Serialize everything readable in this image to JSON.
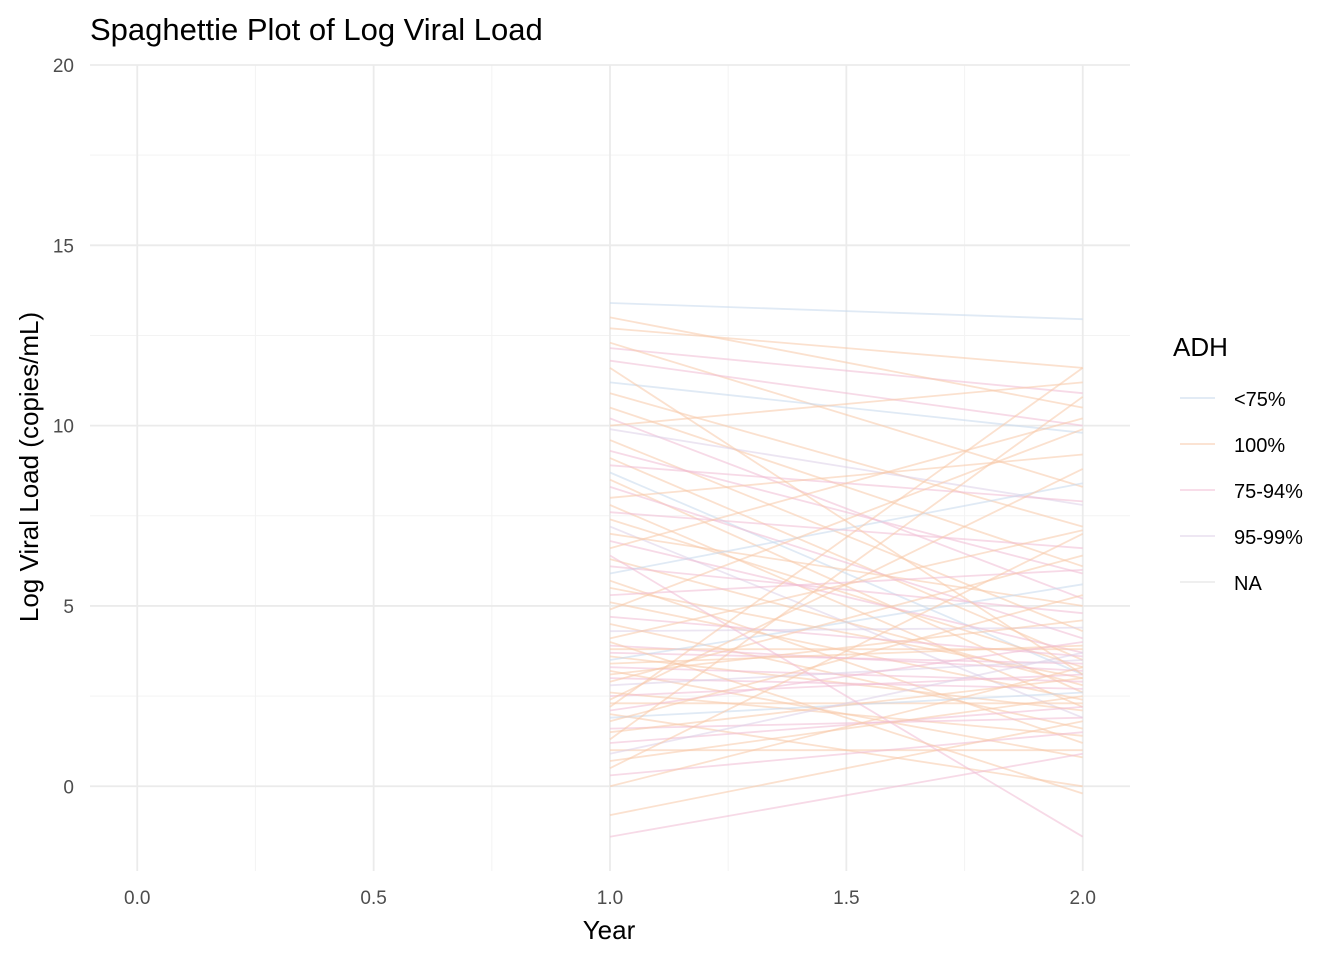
{
  "chart_data": {
    "type": "line",
    "title": "Spaghettie Plot of Log Viral Load",
    "xlabel": "Year",
    "ylabel": "Log Viral Load (copies/mL)",
    "xlim": [
      -0.1,
      2.1
    ],
    "ylim": [
      -2.35,
      20
    ],
    "x_ticks": [
      0.0,
      0.5,
      1.0,
      1.5,
      2.0
    ],
    "x_tick_labels": [
      "0.0",
      "0.5",
      "1.0",
      "1.5",
      "2.0"
    ],
    "y_ticks": [
      0,
      5,
      10,
      15,
      20
    ],
    "y_tick_labels": [
      "0",
      "5",
      "10",
      "15",
      "20"
    ],
    "grid": true,
    "legend": {
      "title": "ADH",
      "position": "right",
      "entries": [
        {
          "label": "<75%",
          "color": "#c6d8ec"
        },
        {
          "label": "100%",
          "color": "#f7c8a8"
        },
        {
          "label": "75-94%",
          "color": "#f1bcd4"
        },
        {
          "label": "95-99%",
          "color": "#ddd0e8"
        },
        {
          "label": "NA",
          "color": "#e0e0e0"
        }
      ]
    },
    "line_opacity": 0.3,
    "series": [
      {
        "group": "<75%",
        "x": [
          1,
          2
        ],
        "y": [
          13.4,
          12.95
        ]
      },
      {
        "group": "75-94%",
        "x": [
          1,
          2
        ],
        "y": [
          12.15,
          10.9
        ]
      },
      {
        "group": "100%",
        "x": [
          1,
          2
        ],
        "y": [
          13.0,
          10.5
        ]
      },
      {
        "group": "100%",
        "x": [
          1,
          2
        ],
        "y": [
          12.7,
          11.6
        ]
      },
      {
        "group": "100%",
        "x": [
          1,
          2
        ],
        "y": [
          12.3,
          8.3
        ]
      },
      {
        "group": "75-94%",
        "x": [
          1,
          2
        ],
        "y": [
          11.8,
          10.0
        ]
      },
      {
        "group": "<75%",
        "x": [
          1,
          2
        ],
        "y": [
          11.2,
          9.8
        ]
      },
      {
        "group": "100%",
        "x": [
          1,
          2
        ],
        "y": [
          10.9,
          7.2
        ]
      },
      {
        "group": "100%",
        "x": [
          1,
          2
        ],
        "y": [
          10.5,
          6.1
        ]
      },
      {
        "group": "75-94%",
        "x": [
          1,
          2
        ],
        "y": [
          10.2,
          5.2
        ]
      },
      {
        "group": "95-99%",
        "x": [
          1,
          2
        ],
        "y": [
          9.9,
          7.8
        ]
      },
      {
        "group": "100%",
        "x": [
          1,
          2
        ],
        "y": [
          9.6,
          4.3
        ]
      },
      {
        "group": "75-94%",
        "x": [
          1,
          2
        ],
        "y": [
          9.3,
          5.9
        ]
      },
      {
        "group": "100%",
        "x": [
          1,
          2
        ],
        "y": [
          9.1,
          3.5
        ]
      },
      {
        "group": "75-94%",
        "x": [
          1,
          2
        ],
        "y": [
          8.9,
          7.9
        ]
      },
      {
        "group": "<75%",
        "x": [
          1,
          2
        ],
        "y": [
          8.7,
          3.1
        ]
      },
      {
        "group": "100%",
        "x": [
          1,
          2
        ],
        "y": [
          8.5,
          2.6
        ]
      },
      {
        "group": "75-94%",
        "x": [
          1,
          2
        ],
        "y": [
          8.3,
          4.1
        ]
      },
      {
        "group": "100%",
        "x": [
          1,
          2
        ],
        "y": [
          8.0,
          9.2
        ]
      },
      {
        "group": "100%",
        "x": [
          1,
          2
        ],
        "y": [
          7.8,
          2.2
        ]
      },
      {
        "group": "75-94%",
        "x": [
          1,
          2
        ],
        "y": [
          7.6,
          6.6
        ]
      },
      {
        "group": "100%",
        "x": [
          1,
          2
        ],
        "y": [
          7.4,
          3.3
        ]
      },
      {
        "group": "95-99%",
        "x": [
          1,
          2
        ],
        "y": [
          7.2,
          1.9
        ]
      },
      {
        "group": "100%",
        "x": [
          1,
          2
        ],
        "y": [
          7.0,
          5.0
        ]
      },
      {
        "group": "75-94%",
        "x": [
          1,
          2
        ],
        "y": [
          6.8,
          3.7
        ]
      },
      {
        "group": "100%",
        "x": [
          1,
          2
        ],
        "y": [
          6.6,
          10.2
        ]
      },
      {
        "group": "100%",
        "x": [
          1,
          2
        ],
        "y": [
          6.3,
          2.8
        ]
      },
      {
        "group": "75-94%",
        "x": [
          1,
          2
        ],
        "y": [
          6.1,
          4.8
        ]
      },
      {
        "group": "<75%",
        "x": [
          1,
          2
        ],
        "y": [
          5.9,
          8.4
        ]
      },
      {
        "group": "100%",
        "x": [
          1,
          2
        ],
        "y": [
          5.7,
          1.2
        ]
      },
      {
        "group": "100%",
        "x": [
          1,
          2
        ],
        "y": [
          5.5,
          3.0
        ]
      },
      {
        "group": "75-94%",
        "x": [
          1,
          2
        ],
        "y": [
          5.3,
          6.0
        ]
      },
      {
        "group": "100%",
        "x": [
          1,
          2
        ],
        "y": [
          5.1,
          2.4
        ]
      },
      {
        "group": "100%",
        "x": [
          1,
          2
        ],
        "y": [
          4.9,
          9.9
        ]
      },
      {
        "group": "75-94%",
        "x": [
          1,
          2
        ],
        "y": [
          4.7,
          3.6
        ]
      },
      {
        "group": "100%",
        "x": [
          1,
          2
        ],
        "y": [
          4.5,
          1.6
        ]
      },
      {
        "group": "95-99%",
        "x": [
          1,
          2
        ],
        "y": [
          4.3,
          4.4
        ]
      },
      {
        "group": "100%",
        "x": [
          1,
          2
        ],
        "y": [
          4.1,
          7.1
        ]
      },
      {
        "group": "75-94%",
        "x": [
          1,
          2
        ],
        "y": [
          3.9,
          3.2
        ]
      },
      {
        "group": "100%",
        "x": [
          1,
          2
        ],
        "y": [
          3.8,
          3.8
        ]
      },
      {
        "group": "75-94%",
        "x": [
          1,
          2
        ],
        "y": [
          3.7,
          3.4
        ]
      },
      {
        "group": "100%",
        "x": [
          1,
          2
        ],
        "y": [
          3.6,
          2.1
        ]
      },
      {
        "group": "<75%",
        "x": [
          1,
          2
        ],
        "y": [
          3.5,
          5.6
        ]
      },
      {
        "group": "100%",
        "x": [
          1,
          2
        ],
        "y": [
          3.4,
          3.9
        ]
      },
      {
        "group": "75-94%",
        "x": [
          1,
          2
        ],
        "y": [
          3.3,
          2.9
        ]
      },
      {
        "group": "100%",
        "x": [
          1,
          2
        ],
        "y": [
          3.2,
          0.8
        ]
      },
      {
        "group": "100%",
        "x": [
          1,
          2
        ],
        "y": [
          3.1,
          4.6
        ]
      },
      {
        "group": "75-94%",
        "x": [
          1,
          2
        ],
        "y": [
          3.0,
          2.7
        ]
      },
      {
        "group": "100%",
        "x": [
          1,
          2
        ],
        "y": [
          2.9,
          6.4
        ]
      },
      {
        "group": "95-99%",
        "x": [
          1,
          2
        ],
        "y": [
          2.8,
          3.5
        ]
      },
      {
        "group": "100%",
        "x": [
          1,
          2
        ],
        "y": [
          2.6,
          1.4
        ]
      },
      {
        "group": "75-94%",
        "x": [
          1,
          2
        ],
        "y": [
          2.5,
          3.1
        ]
      },
      {
        "group": "100%",
        "x": [
          1,
          2
        ],
        "y": [
          2.4,
          8.8
        ]
      },
      {
        "group": "100%",
        "x": [
          1,
          2
        ],
        "y": [
          2.3,
          2.3
        ]
      },
      {
        "group": "75-94%",
        "x": [
          1,
          2
        ],
        "y": [
          2.1,
          4.0
        ]
      },
      {
        "group": "100%",
        "x": [
          1,
          2
        ],
        "y": [
          2.0,
          0.0
        ]
      },
      {
        "group": "<75%",
        "x": [
          1,
          2
        ],
        "y": [
          1.9,
          2.6
        ]
      },
      {
        "group": "100%",
        "x": [
          1,
          2
        ],
        "y": [
          1.8,
          5.3
        ]
      },
      {
        "group": "75-94%",
        "x": [
          1,
          2
        ],
        "y": [
          1.6,
          1.9
        ]
      },
      {
        "group": "100%",
        "x": [
          1,
          2
        ],
        "y": [
          1.5,
          3.0
        ]
      },
      {
        "group": "100%",
        "x": [
          1,
          2
        ],
        "y": [
          1.3,
          10.8
        ]
      },
      {
        "group": "75-94%",
        "x": [
          1,
          2
        ],
        "y": [
          1.2,
          2.2
        ]
      },
      {
        "group": "100%",
        "x": [
          1,
          2
        ],
        "y": [
          1.0,
          1.0
        ]
      },
      {
        "group": "95-99%",
        "x": [
          1,
          2
        ],
        "y": [
          0.9,
          3.7
        ]
      },
      {
        "group": "100%",
        "x": [
          1,
          2
        ],
        "y": [
          0.7,
          2.5
        ]
      },
      {
        "group": "100%",
        "x": [
          1,
          2
        ],
        "y": [
          0.5,
          7.0
        ]
      },
      {
        "group": "75-94%",
        "x": [
          1,
          2
        ],
        "y": [
          0.3,
          1.5
        ]
      },
      {
        "group": "100%",
        "x": [
          1,
          2
        ],
        "y": [
          0.0,
          3.3
        ]
      },
      {
        "group": "100%",
        "x": [
          1,
          2
        ],
        "y": [
          -0.8,
          1.8
        ]
      },
      {
        "group": "75-94%",
        "x": [
          1,
          2
        ],
        "y": [
          -1.4,
          0.9
        ]
      },
      {
        "group": "100%",
        "x": [
          1,
          2
        ],
        "y": [
          11.6,
          3.1
        ]
      },
      {
        "group": "100%",
        "x": [
          1,
          2
        ],
        "y": [
          10.0,
          11.2
        ]
      },
      {
        "group": "75-94%",
        "x": [
          1,
          2
        ],
        "y": [
          6.4,
          -1.4
        ]
      },
      {
        "group": "100%",
        "x": [
          1,
          2
        ],
        "y": [
          4.0,
          -0.2
        ]
      },
      {
        "group": "100%",
        "x": [
          1,
          2
        ],
        "y": [
          2.2,
          11.6
        ]
      }
    ]
  }
}
